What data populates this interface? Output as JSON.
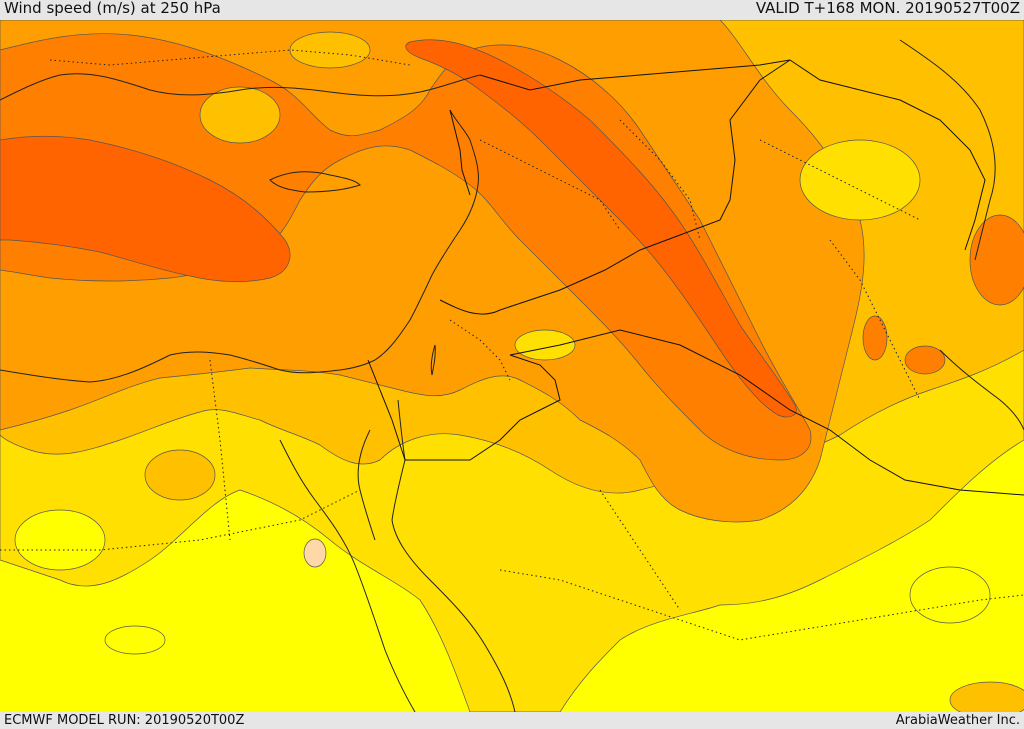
{
  "header": {
    "title": "Wind speed (m/s) at 250 hPa",
    "valid": "VALID T+168 MON. 20190527T00Z"
  },
  "footer": {
    "model_run": "ECMWF MODEL RUN: 20190520T00Z",
    "credit": "ArabiaWeather Inc."
  },
  "palette": {
    "weakest": "#ffff00",
    "weak": "#ffe000",
    "moderate": "#ffc000",
    "strong": "#ff9e00",
    "stronger": "#ff8000",
    "jet_core": "#ff6400",
    "spot": "#ffd8a8"
  }
}
